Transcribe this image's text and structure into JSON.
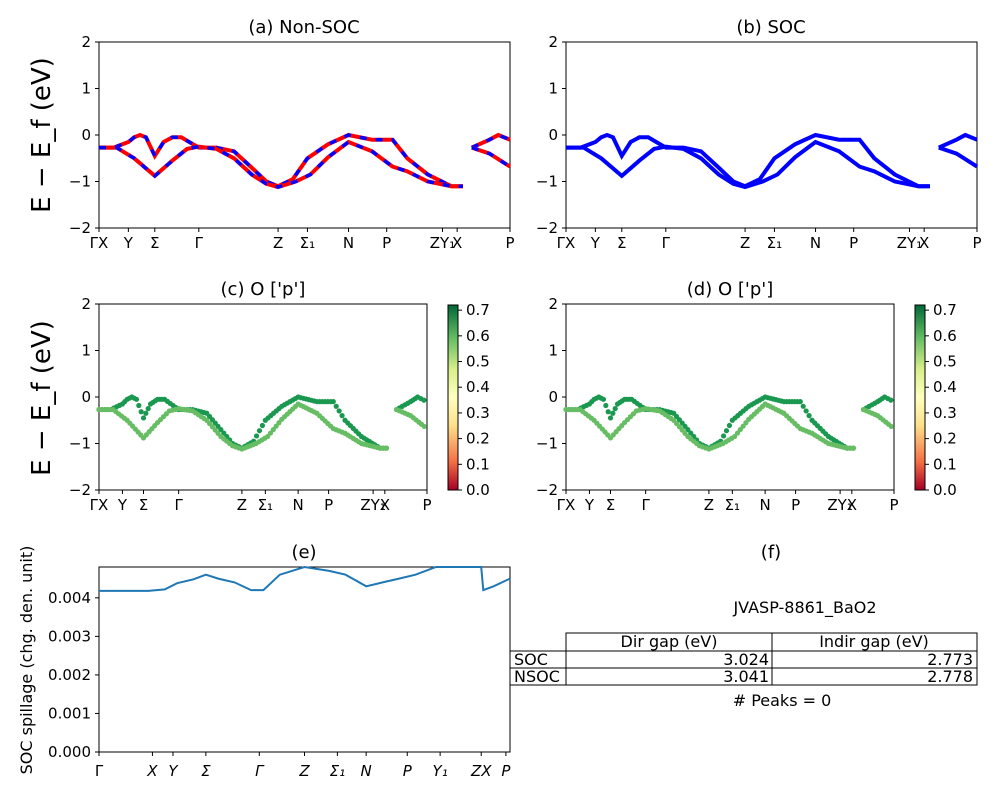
{
  "chart_data": [
    {
      "type": "line",
      "title": "(a) Non-SOC",
      "ylabel": "E − E_f (eV)",
      "ylim": [
        -2,
        2
      ],
      "yticks": [
        "2",
        "1",
        "0",
        "−1",
        "−2"
      ],
      "xticks": [
        "ΓX",
        "Y",
        "Σ",
        "Γ",
        "Z",
        "Σ₁",
        "N",
        "P",
        "ZY₁",
        "X",
        "P"
      ],
      "series": [
        {
          "values": [
            [
              0.0,
              -0.27
            ],
            [
              0.05,
              -0.27
            ],
            [
              0.1,
              -0.15
            ],
            [
              0.12,
              -0.05
            ],
            [
              0.14,
              0.0
            ],
            [
              0.16,
              -0.05
            ],
            [
              0.19,
              -0.45
            ],
            [
              0.22,
              -0.15
            ],
            [
              0.25,
              -0.05
            ],
            [
              0.28,
              -0.05
            ],
            [
              0.34,
              -0.27
            ],
            [
              0.4,
              -0.27
            ],
            [
              0.46,
              -0.35
            ],
            [
              0.52,
              -0.7
            ],
            [
              0.57,
              -1.0
            ],
            [
              0.61,
              -1.1
            ],
            [
              0.66,
              -0.95
            ],
            [
              0.71,
              -0.5
            ],
            [
              0.78,
              -0.2
            ],
            [
              0.85,
              0.0
            ],
            [
              0.93,
              -0.1
            ],
            [
              1.0,
              -0.1
            ],
            [
              1.05,
              -0.5
            ],
            [
              1.12,
              -0.85
            ],
            [
              1.2,
              -1.1
            ],
            [
              1.24,
              -1.1
            ],
            [
              null,
              null
            ],
            [
              1.27,
              -0.27
            ],
            [
              1.33,
              -0.1
            ],
            [
              1.36,
              0.0
            ],
            [
              1.4,
              -0.1
            ]
          ]
        },
        {
          "values": [
            [
              0.0,
              -0.27
            ],
            [
              0.06,
              -0.27
            ],
            [
              0.12,
              -0.5
            ],
            [
              0.19,
              -0.88
            ],
            [
              0.25,
              -0.55
            ],
            [
              0.3,
              -0.3
            ],
            [
              0.34,
              -0.25
            ],
            [
              0.4,
              -0.3
            ],
            [
              0.46,
              -0.5
            ],
            [
              0.52,
              -0.85
            ],
            [
              0.57,
              -1.05
            ],
            [
              0.61,
              -1.12
            ],
            [
              0.67,
              -1.0
            ],
            [
              0.72,
              -0.85
            ],
            [
              0.78,
              -0.48
            ],
            [
              0.85,
              -0.15
            ],
            [
              0.93,
              -0.35
            ],
            [
              1.0,
              -0.68
            ],
            [
              1.05,
              -0.78
            ],
            [
              1.12,
              -1.0
            ],
            [
              1.2,
              -1.1
            ],
            [
              1.24,
              -1.1
            ],
            [
              null,
              null
            ],
            [
              1.27,
              -0.27
            ],
            [
              1.33,
              -0.4
            ],
            [
              1.4,
              -0.68
            ]
          ]
        }
      ]
    },
    {
      "type": "line",
      "title": "(b) SOC",
      "ylim": [
        -2,
        2
      ],
      "yticks": [
        "2",
        "1",
        "0",
        "−1",
        "−2"
      ],
      "xticks": [
        "ΓX",
        "Y",
        "Σ",
        "Γ",
        "Z",
        "Σ₁",
        "N",
        "P",
        "ZY₁",
        "X",
        "P"
      ]
    },
    {
      "type": "scatter",
      "title": "(c)  O ['p']",
      "ylabel": "E − E_f (eV)",
      "ylim": [
        -2,
        2
      ],
      "yticks": [
        "2",
        "1",
        "0",
        "−1",
        "−2"
      ],
      "xticks": [
        "ΓX",
        "Y",
        "Σ",
        "Γ",
        "Z",
        "Σ₁",
        "N",
        "P",
        "ZY₁",
        "X",
        "P"
      ],
      "colorbar": {
        "ticks": [
          "0.7",
          "0.6",
          "0.5",
          "0.4",
          "0.3",
          "0.2",
          "0.1",
          "0.0"
        ],
        "range": [
          0.0,
          0.72
        ]
      }
    },
    {
      "type": "scatter",
      "title": "(d) O ['p']",
      "ylim": [
        -2,
        2
      ],
      "yticks": [
        "2",
        "1",
        "0",
        "−1",
        "−2"
      ],
      "xticks": [
        "ΓX",
        "Y",
        "Σ",
        "Γ",
        "Z",
        "Σ₁",
        "N",
        "P",
        "ZY₁",
        "X",
        "P"
      ],
      "colorbar": {
        "ticks": [
          "0.7",
          "0.6",
          "0.5",
          "0.4",
          "0.3",
          "0.2",
          "0.1",
          "0.0"
        ],
        "range": [
          0.0,
          0.72
        ]
      }
    },
    {
      "type": "line",
      "title": "(e)",
      "ylabel": "SOC spillage (chg. den. unit)",
      "ylim": [
        0.0,
        0.0048
      ],
      "yticks": [
        "0.004",
        "0.003",
        "0.002",
        "0.001",
        "0.000"
      ],
      "xticks": [
        "Γ",
        "X",
        "Y",
        "Σ",
        "Γ",
        "Z",
        "Σ₁",
        "N",
        "P",
        "Y₁",
        "ZX",
        "P"
      ],
      "series": [
        {
          "values": [
            [
              0.0,
              0.00418
            ],
            [
              0.12,
              0.00418
            ],
            [
              0.16,
              0.00422
            ],
            [
              0.19,
              0.00438
            ],
            [
              0.23,
              0.00448
            ],
            [
              0.26,
              0.0046
            ],
            [
              0.29,
              0.0045
            ],
            [
              0.33,
              0.0044
            ],
            [
              0.37,
              0.0042
            ],
            [
              0.4,
              0.0042
            ],
            [
              0.44,
              0.0046
            ],
            [
              0.5,
              0.0048
            ],
            [
              0.56,
              0.0047
            ],
            [
              0.6,
              0.0046
            ],
            [
              0.65,
              0.0043
            ],
            [
              0.69,
              0.0044
            ],
            [
              0.73,
              0.0045
            ],
            [
              0.77,
              0.0046
            ],
            [
              0.82,
              0.0048
            ],
            [
              0.93,
              0.0048
            ],
            [
              0.935,
              0.0042
            ],
            [
              0.96,
              0.0043
            ],
            [
              1.0,
              0.0045
            ]
          ]
        }
      ]
    }
  ],
  "panel_f": {
    "title": "(f)",
    "label": "JVASP-8861_BaO2",
    "columns": [
      "Dir gap (eV)",
      "Indir gap (eV)"
    ],
    "rows": [
      {
        "name": "SOC",
        "dir": "3.024",
        "indir": "2.773"
      },
      {
        "name": "NSOC",
        "dir": "3.041",
        "indir": "2.778"
      }
    ],
    "peaks": "# Peaks = 0"
  },
  "colors": {
    "red": "#ff0000",
    "blue": "#0000ff",
    "spillage": "#1f77b4"
  }
}
